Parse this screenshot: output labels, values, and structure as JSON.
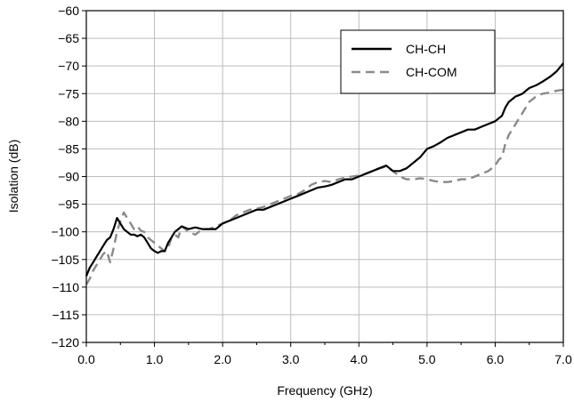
{
  "chart_data": {
    "type": "line",
    "title": "",
    "xlabel": "Frequency (GHz)",
    "ylabel": "Isolation (dB)",
    "xlim": [
      0.0,
      7.0
    ],
    "ylim": [
      -120,
      -60
    ],
    "grid": true,
    "legend_position": "top-right",
    "x_ticks": [
      "0.0",
      "1.0",
      "2.0",
      "3.0",
      "4.0",
      "5.0",
      "6.0",
      "7.0"
    ],
    "y_ticks": [
      "−60",
      "−65",
      "−70",
      "−75",
      "−80",
      "−85",
      "−90",
      "−95",
      "−100",
      "−105",
      "−110",
      "−115",
      "−120"
    ],
    "series": [
      {
        "name": "CH-CH",
        "color": "#000000",
        "dash": "solid",
        "x": [
          0.0,
          0.05,
          0.1,
          0.15,
          0.2,
          0.25,
          0.3,
          0.35,
          0.4,
          0.45,
          0.5,
          0.55,
          0.6,
          0.65,
          0.7,
          0.75,
          0.8,
          0.85,
          0.9,
          0.95,
          1.0,
          1.05,
          1.1,
          1.15,
          1.2,
          1.25,
          1.3,
          1.35,
          1.4,
          1.5,
          1.6,
          1.7,
          1.8,
          1.9,
          2.0,
          2.1,
          2.2,
          2.3,
          2.4,
          2.5,
          2.6,
          2.7,
          2.8,
          2.9,
          3.0,
          3.1,
          3.2,
          3.3,
          3.4,
          3.5,
          3.6,
          3.7,
          3.8,
          3.9,
          4.0,
          4.1,
          4.2,
          4.3,
          4.4,
          4.5,
          4.6,
          4.7,
          4.8,
          4.9,
          5.0,
          5.1,
          5.2,
          5.3,
          5.4,
          5.5,
          5.6,
          5.7,
          5.8,
          5.9,
          6.0,
          6.05,
          6.1,
          6.15,
          6.2,
          6.25,
          6.3,
          6.35,
          6.4,
          6.45,
          6.5,
          6.6,
          6.7,
          6.8,
          6.9,
          7.0
        ],
        "y": [
          -108,
          -106.5,
          -105.5,
          -104.5,
          -103.5,
          -102.5,
          -101.5,
          -101,
          -99.5,
          -97.5,
          -98.5,
          -99.5,
          -100,
          -100.5,
          -100.5,
          -100.8,
          -100.5,
          -101,
          -102,
          -103,
          -103.5,
          -103.8,
          -103.5,
          -103.5,
          -102,
          -101,
          -100,
          -99.5,
          -99,
          -99.5,
          -99.2,
          -99.5,
          -99.5,
          -99.5,
          -98.5,
          -98,
          -97.5,
          -97,
          -96.5,
          -96,
          -96,
          -95.5,
          -95,
          -94.5,
          -94,
          -93.5,
          -93,
          -92.5,
          -92,
          -91.8,
          -91.5,
          -91,
          -90.5,
          -90.5,
          -90,
          -89.5,
          -89,
          -88.5,
          -88,
          -89,
          -89,
          -88.5,
          -87.5,
          -86.5,
          -85,
          -84.5,
          -83.8,
          -83,
          -82.5,
          -82,
          -81.5,
          -81.5,
          -81,
          -80.5,
          -80,
          -79.5,
          -79,
          -77.5,
          -76.5,
          -76,
          -75.5,
          -75.3,
          -75,
          -74.5,
          -74,
          -73.5,
          -72.8,
          -72,
          -71,
          -69.5
        ]
      },
      {
        "name": "CH-COM",
        "color": "#8a8a8a",
        "dash": "dashed",
        "x": [
          0.0,
          0.05,
          0.1,
          0.15,
          0.2,
          0.25,
          0.3,
          0.35,
          0.4,
          0.45,
          0.5,
          0.55,
          0.6,
          0.65,
          0.7,
          0.75,
          0.8,
          0.85,
          0.9,
          0.95,
          1.0,
          1.05,
          1.1,
          1.15,
          1.2,
          1.25,
          1.3,
          1.35,
          1.4,
          1.5,
          1.6,
          1.7,
          1.8,
          1.9,
          2.0,
          2.1,
          2.2,
          2.3,
          2.4,
          2.5,
          2.6,
          2.7,
          2.8,
          2.9,
          3.0,
          3.1,
          3.2,
          3.3,
          3.4,
          3.5,
          3.6,
          3.7,
          3.8,
          3.9,
          4.0,
          4.1,
          4.2,
          4.3,
          4.4,
          4.5,
          4.6,
          4.7,
          4.8,
          4.9,
          5.0,
          5.1,
          5.2,
          5.3,
          5.4,
          5.5,
          5.6,
          5.7,
          5.8,
          5.9,
          6.0,
          6.05,
          6.1,
          6.15,
          6.2,
          6.25,
          6.3,
          6.35,
          6.4,
          6.45,
          6.5,
          6.6,
          6.7,
          6.8,
          6.9,
          7.0
        ],
        "y": [
          -109.5,
          -108.5,
          -107,
          -106,
          -105,
          -104,
          -103.5,
          -105.5,
          -103,
          -100,
          -98,
          -96.5,
          -97.5,
          -98.5,
          -99.5,
          -99,
          -99.8,
          -100,
          -101,
          -101.5,
          -102,
          -102.5,
          -103,
          -103.5,
          -103,
          -101,
          -100.5,
          -101,
          -99,
          -100,
          -100.5,
          -99.5,
          -99.5,
          -99,
          -98.5,
          -98,
          -97,
          -96.5,
          -96,
          -95.8,
          -95.5,
          -95,
          -94.5,
          -94,
          -93.5,
          -93.2,
          -92.5,
          -91.5,
          -91,
          -90.8,
          -91,
          -90.5,
          -90.2,
          -90,
          -89.8,
          -89.5,
          -89,
          -88.5,
          -88.2,
          -89,
          -90,
          -90.5,
          -90.5,
          -90.3,
          -90.5,
          -90.8,
          -91,
          -91,
          -90.8,
          -90.5,
          -90.5,
          -90,
          -89.5,
          -89,
          -88,
          -87,
          -86.5,
          -84,
          -82.5,
          -81.5,
          -80.5,
          -79.5,
          -78.5,
          -77.5,
          -76.5,
          -75.5,
          -75,
          -74.8,
          -74.5,
          -74.3
        ]
      }
    ]
  }
}
